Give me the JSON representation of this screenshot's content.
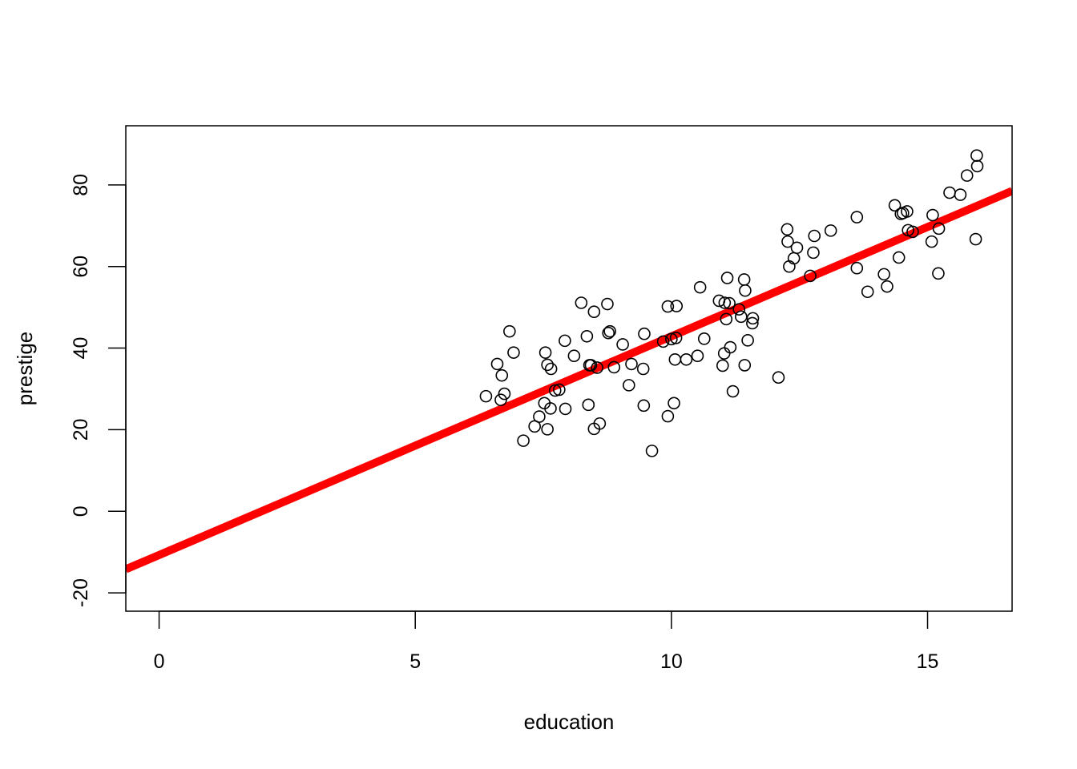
{
  "chart_data": {
    "type": "scatter",
    "title": "",
    "xlabel": "education",
    "ylabel": "prestige",
    "xlim": [
      -0.65,
      16.65
    ],
    "ylim": [
      -24.5,
      94.5
    ],
    "xticks": [
      0,
      5,
      10,
      15
    ],
    "yticks": [
      -20,
      0,
      20,
      40,
      60,
      80
    ],
    "grid": false,
    "legend": "none",
    "point_color": "#000000",
    "line_color": "#ff0000",
    "fit_line": {
      "intercept": -10.73,
      "slope": 5.361
    },
    "points": [
      [
        6.38,
        28.2
      ],
      [
        6.6,
        36.1
      ],
      [
        6.67,
        27.3
      ],
      [
        6.69,
        33.3
      ],
      [
        6.74,
        28.8
      ],
      [
        6.84,
        44.1
      ],
      [
        6.92,
        38.9
      ],
      [
        7.11,
        17.3
      ],
      [
        7.33,
        20.8
      ],
      [
        7.42,
        23.2
      ],
      [
        7.52,
        26.5
      ],
      [
        7.54,
        38.9
      ],
      [
        7.58,
        35.9
      ],
      [
        7.58,
        20.1
      ],
      [
        7.64,
        25.2
      ],
      [
        7.65,
        34.9
      ],
      [
        7.73,
        29.6
      ],
      [
        7.81,
        29.8
      ],
      [
        7.92,
        41.8
      ],
      [
        7.93,
        25.1
      ],
      [
        8.1,
        38.1
      ],
      [
        8.24,
        51.1
      ],
      [
        8.35,
        42.9
      ],
      [
        8.38,
        26.1
      ],
      [
        8.4,
        35.8
      ],
      [
        8.43,
        35.8
      ],
      [
        8.49,
        48.9
      ],
      [
        8.49,
        20.2
      ],
      [
        8.55,
        35.2
      ],
      [
        8.6,
        21.5
      ],
      [
        8.75,
        50.8
      ],
      [
        8.77,
        43.7
      ],
      [
        8.8,
        44.1
      ],
      [
        8.88,
        35.3
      ],
      [
        9.05,
        40.9
      ],
      [
        9.17,
        30.9
      ],
      [
        9.22,
        36.1
      ],
      [
        9.45,
        34.9
      ],
      [
        9.46,
        25.9
      ],
      [
        9.47,
        43.5
      ],
      [
        9.62,
        14.8
      ],
      [
        9.84,
        41.6
      ],
      [
        9.93,
        50.2
      ],
      [
        9.93,
        23.3
      ],
      [
        10.0,
        42.2
      ],
      [
        10.05,
        26.5
      ],
      [
        10.07,
        37.2
      ],
      [
        10.09,
        42.5
      ],
      [
        10.1,
        50.3
      ],
      [
        10.29,
        37.2
      ],
      [
        10.51,
        38.1
      ],
      [
        10.56,
        54.9
      ],
      [
        10.64,
        42.3
      ],
      [
        10.93,
        51.6
      ],
      [
        11.0,
        35.7
      ],
      [
        11.03,
        38.7
      ],
      [
        11.04,
        51.1
      ],
      [
        11.07,
        47.1
      ],
      [
        11.09,
        57.2
      ],
      [
        11.13,
        51.0
      ],
      [
        11.15,
        40.2
      ],
      [
        11.2,
        29.4
      ],
      [
        11.32,
        49.5
      ],
      [
        11.36,
        47.7
      ],
      [
        11.42,
        56.8
      ],
      [
        11.43,
        35.8
      ],
      [
        11.44,
        54.1
      ],
      [
        11.49,
        41.9
      ],
      [
        11.58,
        46.1
      ],
      [
        11.59,
        47.3
      ],
      [
        12.09,
        32.8
      ],
      [
        12.26,
        69.1
      ],
      [
        12.27,
        66.1
      ],
      [
        12.3,
        60.0
      ],
      [
        12.39,
        62.0
      ],
      [
        12.45,
        64.6
      ],
      [
        12.71,
        57.7
      ],
      [
        12.77,
        63.4
      ],
      [
        12.79,
        67.5
      ],
      [
        13.11,
        68.8
      ],
      [
        13.62,
        72.1
      ],
      [
        13.62,
        59.6
      ],
      [
        13.83,
        53.8
      ],
      [
        14.15,
        58.1
      ],
      [
        14.21,
        55.1
      ],
      [
        14.36,
        75.0
      ],
      [
        14.44,
        62.2
      ],
      [
        14.48,
        72.9
      ],
      [
        14.52,
        73.1
      ],
      [
        14.6,
        73.5
      ],
      [
        14.62,
        68.9
      ],
      [
        14.71,
        68.5
      ],
      [
        15.08,
        66.1
      ],
      [
        15.1,
        72.6
      ],
      [
        15.21,
        58.3
      ],
      [
        15.22,
        69.3
      ],
      [
        15.43,
        78.1
      ],
      [
        15.64,
        77.6
      ],
      [
        15.77,
        82.3
      ],
      [
        15.94,
        66.7
      ],
      [
        15.96,
        87.2
      ],
      [
        15.97,
        84.6
      ]
    ]
  }
}
